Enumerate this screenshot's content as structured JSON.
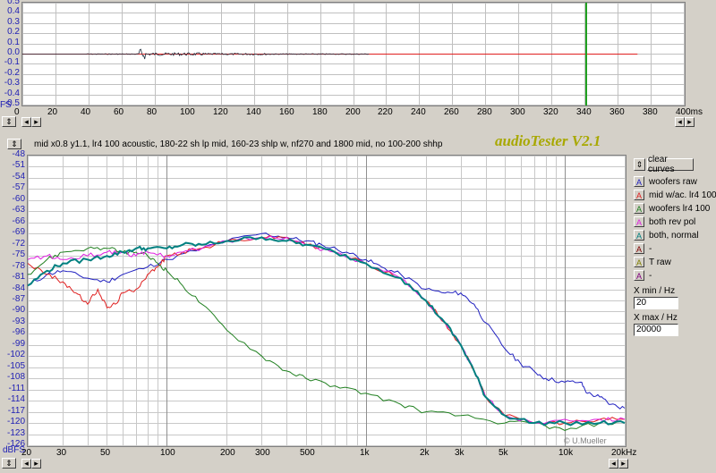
{
  "top_chart": {
    "y_ticks": [
      "0.5",
      "0.4",
      "0.3",
      "0.2",
      "0.1",
      "0.0",
      "-0.1",
      "-0.2",
      "-0.3",
      "-0.4",
      "-0.5"
    ],
    "y_unit": "FS",
    "x_ticks": [
      "0",
      "20",
      "40",
      "60",
      "80",
      "100",
      "120",
      "140",
      "160",
      "180",
      "200",
      "220",
      "240",
      "260",
      "280",
      "300",
      "320",
      "340",
      "360",
      "380",
      "400ms"
    ],
    "marker_ms": 341
  },
  "toolbar": {
    "status_text": "mid x0.8 y1.1, lr4 100 acoustic, 180-22 sh lp mid, 160-23 shlp w, nf270 and 1800 mid, no 100-200 shhp",
    "brand": "audioTester V2.1"
  },
  "main_chart": {
    "y_ticks": [
      "-48",
      "-51",
      "-54",
      "-57",
      "-60",
      "-63",
      "-66",
      "-69",
      "-72",
      "-75",
      "-78",
      "-81",
      "-84",
      "-87",
      "-90",
      "-93",
      "-96",
      "-99",
      "-102",
      "-105",
      "-108",
      "-111",
      "-114",
      "-117",
      "-120",
      "-123",
      "-126"
    ],
    "y_unit": "dBFS",
    "x_ticks": [
      "20",
      "30",
      "50",
      "100",
      "200",
      "300",
      "500",
      "1k",
      "2k",
      "3k",
      "5k",
      "10k",
      "20kHz"
    ],
    "credit": "© U.Mueller"
  },
  "legend": {
    "clear_label": "clear curves",
    "items": [
      {
        "letter": "A",
        "label": "woofers raw",
        "color": "#2020c0"
      },
      {
        "letter": "A",
        "label": "mid w/ac. lr4 100",
        "color": "#e02020"
      },
      {
        "letter": "A",
        "label": "woofers lr4 100",
        "color": "#208020"
      },
      {
        "letter": "A",
        "label": "both rev pol",
        "color": "#e020e0"
      },
      {
        "letter": "A",
        "label": "both, normal",
        "color": "#008080"
      },
      {
        "letter": "A",
        "label": "-",
        "color": "#800000"
      },
      {
        "letter": "A",
        "label": "T raw",
        "color": "#808000"
      },
      {
        "letter": "A",
        "label": "-",
        "color": "#800080"
      }
    ],
    "xmin_label": "X min / Hz",
    "xmin_value": "20",
    "xmax_label": "X max / Hz",
    "xmax_value": "20000"
  },
  "chart_data": {
    "type": "line",
    "xlabel": "",
    "ylabel": "dBFS",
    "x_scale": "log",
    "xlim": [
      20,
      20000
    ],
    "ylim": [
      -126,
      -48
    ],
    "grid": true,
    "series": [
      {
        "name": "woofers raw",
        "color": "#2020c0",
        "points": [
          [
            20,
            -83
          ],
          [
            25,
            -80
          ],
          [
            30,
            -79
          ],
          [
            40,
            -81
          ],
          [
            50,
            -82
          ],
          [
            60,
            -80
          ],
          [
            80,
            -78
          ],
          [
            100,
            -76
          ],
          [
            150,
            -73
          ],
          [
            200,
            -71
          ],
          [
            300,
            -69
          ],
          [
            400,
            -70
          ],
          [
            500,
            -71
          ],
          [
            600,
            -72
          ],
          [
            800,
            -74
          ],
          [
            1000,
            -76
          ],
          [
            1200,
            -78
          ],
          [
            1500,
            -80
          ],
          [
            2000,
            -84
          ],
          [
            2500,
            -85
          ],
          [
            3000,
            -85
          ],
          [
            3500,
            -88
          ],
          [
            4000,
            -93
          ],
          [
            5000,
            -100
          ],
          [
            6000,
            -104
          ],
          [
            7000,
            -106
          ],
          [
            8000,
            -108
          ],
          [
            10000,
            -109
          ],
          [
            12000,
            -109
          ],
          [
            13000,
            -112
          ],
          [
            15000,
            -113
          ],
          [
            17000,
            -115
          ],
          [
            20000,
            -116
          ]
        ]
      },
      {
        "name": "mid w/ac. lr4 100",
        "color": "#e02020",
        "points": [
          [
            20,
            -77
          ],
          [
            25,
            -80
          ],
          [
            30,
            -82
          ],
          [
            35,
            -85
          ],
          [
            40,
            -88
          ],
          [
            45,
            -84
          ],
          [
            50,
            -89
          ],
          [
            55,
            -88
          ],
          [
            60,
            -85
          ],
          [
            70,
            -84
          ],
          [
            80,
            -80
          ],
          [
            90,
            -78
          ],
          [
            100,
            -75
          ],
          [
            120,
            -74
          ],
          [
            150,
            -73
          ],
          [
            200,
            -71
          ],
          [
            300,
            -70
          ],
          [
            400,
            -70
          ],
          [
            500,
            -72
          ],
          [
            700,
            -74
          ],
          [
            1000,
            -77
          ],
          [
            1500,
            -81
          ],
          [
            2000,
            -87
          ],
          [
            2500,
            -93
          ],
          [
            3000,
            -99
          ],
          [
            3500,
            -106
          ],
          [
            4000,
            -113
          ],
          [
            5000,
            -118
          ],
          [
            7000,
            -120
          ],
          [
            10000,
            -120
          ],
          [
            15000,
            -119
          ],
          [
            20000,
            -119
          ]
        ]
      },
      {
        "name": "woofers lr4 100",
        "color": "#208020",
        "points": [
          [
            20,
            -80
          ],
          [
            25,
            -76
          ],
          [
            30,
            -74
          ],
          [
            40,
            -73
          ],
          [
            50,
            -73
          ],
          [
            60,
            -74
          ],
          [
            70,
            -74
          ],
          [
            80,
            -75
          ],
          [
            90,
            -77
          ],
          [
            100,
            -79
          ],
          [
            120,
            -83
          ],
          [
            150,
            -88
          ],
          [
            200,
            -95
          ],
          [
            300,
            -102
          ],
          [
            400,
            -106
          ],
          [
            500,
            -108
          ],
          [
            700,
            -110
          ],
          [
            1000,
            -112
          ],
          [
            1500,
            -115
          ],
          [
            2000,
            -117
          ],
          [
            3000,
            -118
          ],
          [
            5000,
            -120
          ],
          [
            7000,
            -120
          ],
          [
            10000,
            -122
          ],
          [
            15000,
            -120
          ],
          [
            20000,
            -120
          ]
        ]
      },
      {
        "name": "both rev pol",
        "color": "#e020e0",
        "points": [
          [
            20,
            -76
          ],
          [
            25,
            -75
          ],
          [
            30,
            -76
          ],
          [
            40,
            -75
          ],
          [
            50,
            -74
          ],
          [
            60,
            -74
          ],
          [
            70,
            -75
          ],
          [
            80,
            -74
          ],
          [
            100,
            -75
          ],
          [
            120,
            -74
          ],
          [
            150,
            -73
          ],
          [
            200,
            -71
          ],
          [
            300,
            -70
          ],
          [
            400,
            -70
          ],
          [
            500,
            -72
          ],
          [
            700,
            -74
          ],
          [
            1000,
            -77
          ],
          [
            1500,
            -81
          ],
          [
            2000,
            -87
          ],
          [
            2500,
            -93
          ],
          [
            3000,
            -99
          ],
          [
            3500,
            -106
          ],
          [
            4000,
            -113
          ],
          [
            5000,
            -118
          ],
          [
            7000,
            -120
          ],
          [
            10000,
            -119
          ],
          [
            15000,
            -119
          ],
          [
            20000,
            -119
          ]
        ]
      },
      {
        "name": "both, normal",
        "color": "#008080",
        "points": [
          [
            20,
            -83
          ],
          [
            25,
            -79
          ],
          [
            30,
            -77
          ],
          [
            40,
            -76
          ],
          [
            50,
            -75
          ],
          [
            60,
            -74
          ],
          [
            70,
            -73
          ],
          [
            80,
            -73
          ],
          [
            100,
            -73
          ],
          [
            120,
            -72
          ],
          [
            150,
            -72
          ],
          [
            200,
            -71
          ],
          [
            300,
            -70
          ],
          [
            400,
            -71
          ],
          [
            500,
            -72
          ],
          [
            700,
            -74
          ],
          [
            1000,
            -77
          ],
          [
            1500,
            -81
          ],
          [
            2000,
            -87
          ],
          [
            2500,
            -93
          ],
          [
            3000,
            -99
          ],
          [
            3500,
            -106
          ],
          [
            4000,
            -113
          ],
          [
            5000,
            -118
          ],
          [
            7000,
            -120
          ],
          [
            10000,
            -120
          ],
          [
            15000,
            -120
          ],
          [
            20000,
            -120
          ]
        ]
      }
    ]
  }
}
